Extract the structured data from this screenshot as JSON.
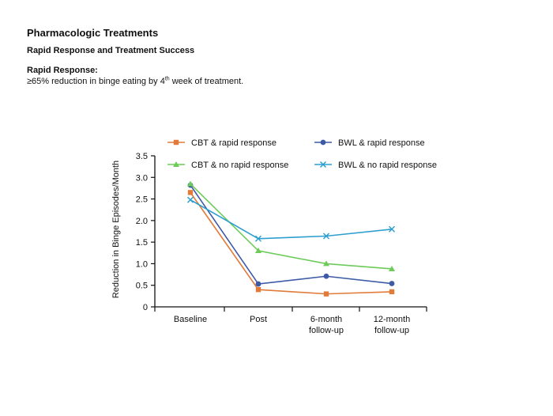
{
  "page": {
    "title": "Pharmacologic Treatments",
    "subtitle": "Rapid Response and Treatment Success",
    "definition_heading": "Rapid Response:",
    "definition_prefix": "≥65% reduction in binge eating by 4",
    "definition_sup": "th",
    "definition_suffix": " week of treatment."
  },
  "chart_data": {
    "type": "line",
    "ylabel": "Reduction in Binge Episodes/Month",
    "xlabel": "",
    "ylim": [
      0,
      3.5
    ],
    "yticks": [
      "0",
      "0.5",
      "1.0",
      "1.5",
      "2.0",
      "2.5",
      "3.0",
      "3.5"
    ],
    "categories": [
      [
        "Baseline"
      ],
      [
        "Post"
      ],
      [
        "6-month",
        "follow-up"
      ],
      [
        "12-month",
        "follow-up"
      ]
    ],
    "grid": false,
    "legend_position": "top",
    "series": [
      {
        "name": "CBT & rapid response",
        "color": "#e07b3a",
        "marker": "square",
        "values": [
          2.65,
          0.4,
          0.3,
          0.35
        ]
      },
      {
        "name": "BWL & rapid response",
        "color": "#3d5aa6",
        "marker": "circle",
        "values": [
          2.82,
          0.53,
          0.71,
          0.54
        ]
      },
      {
        "name": "CBT & no rapid response",
        "color": "#6dcb5a",
        "marker": "triangle",
        "values": [
          2.85,
          1.3,
          1.0,
          0.88
        ]
      },
      {
        "name": "BWL & no rapid response",
        "color": "#2f9fd0",
        "marker": "x",
        "values": [
          2.48,
          1.58,
          1.64,
          1.8
        ]
      }
    ]
  }
}
